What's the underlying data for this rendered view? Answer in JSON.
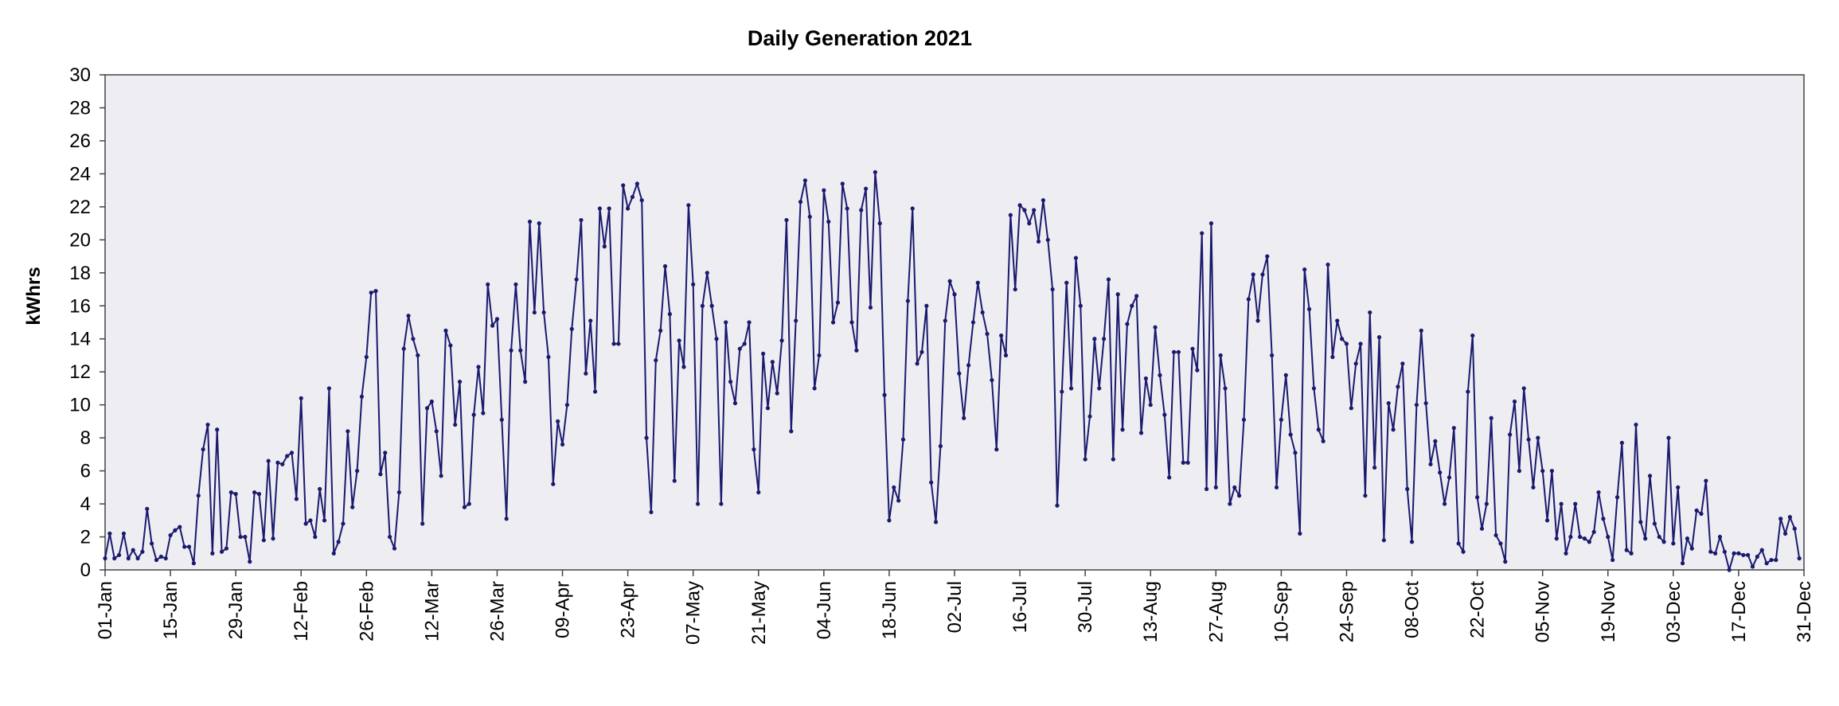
{
  "chart_data": {
    "type": "line",
    "title": "Daily Generation 2021",
    "xlabel": "",
    "ylabel": "kWhrs",
    "ylim": [
      0,
      30
    ],
    "yticks": [
      0,
      2,
      4,
      6,
      8,
      10,
      12,
      14,
      16,
      18,
      20,
      22,
      24,
      26,
      28,
      30
    ],
    "x_start": "01-Jan",
    "x_end": "31-Dec",
    "xticks": [
      {
        "day": 0,
        "label": "01-Jan"
      },
      {
        "day": 14,
        "label": "15-Jan"
      },
      {
        "day": 28,
        "label": "29-Jan"
      },
      {
        "day": 42,
        "label": "12-Feb"
      },
      {
        "day": 56,
        "label": "26-Feb"
      },
      {
        "day": 70,
        "label": "12-Mar"
      },
      {
        "day": 84,
        "label": "26-Mar"
      },
      {
        "day": 98,
        "label": "09-Apr"
      },
      {
        "day": 112,
        "label": "23-Apr"
      },
      {
        "day": 126,
        "label": "07-May"
      },
      {
        "day": 140,
        "label": "21-May"
      },
      {
        "day": 154,
        "label": "04-Jun"
      },
      {
        "day": 168,
        "label": "18-Jun"
      },
      {
        "day": 182,
        "label": "02-Jul"
      },
      {
        "day": 196,
        "label": "16-Jul"
      },
      {
        "day": 210,
        "label": "30-Jul"
      },
      {
        "day": 224,
        "label": "13-Aug"
      },
      {
        "day": 238,
        "label": "27-Aug"
      },
      {
        "day": 252,
        "label": "10-Sep"
      },
      {
        "day": 266,
        "label": "24-Sep"
      },
      {
        "day": 280,
        "label": "08-Oct"
      },
      {
        "day": 294,
        "label": "22-Oct"
      },
      {
        "day": 308,
        "label": "05-Nov"
      },
      {
        "day": 322,
        "label": "19-Nov"
      },
      {
        "day": 336,
        "label": "03-Dec"
      },
      {
        "day": 350,
        "label": "17-Dec"
      },
      {
        "day": 364,
        "label": "31-Dec"
      }
    ],
    "grid": false,
    "line_color": "#1a1a6e",
    "plot_background": "#ededf2",
    "series": [
      {
        "values": [
          0.7,
          2.2,
          0.7,
          0.9,
          2.2,
          0.7,
          1.2,
          0.7,
          1.1,
          3.7,
          1.6,
          0.6,
          0.8,
          0.7,
          2.1,
          2.4,
          2.6,
          1.4,
          1.4,
          0.4,
          4.5,
          7.3,
          8.8,
          1.0,
          8.5,
          1.1,
          1.3,
          4.7,
          4.6,
          2.0,
          2.0,
          0.5,
          4.7,
          4.6,
          1.8,
          6.6,
          1.9,
          6.5,
          6.4,
          6.9,
          7.1,
          4.3,
          10.4,
          2.8,
          3.0,
          2.0,
          4.9,
          3.0,
          11.0,
          1.0,
          1.7,
          2.8,
          8.4,
          3.8,
          6.0,
          10.5,
          12.9,
          16.8,
          16.9,
          5.8,
          7.1,
          2.0,
          1.3,
          4.7,
          13.4,
          15.4,
          14.0,
          13.0,
          2.8,
          9.8,
          10.2,
          8.4,
          5.7,
          14.5,
          13.6,
          8.8,
          11.4,
          3.8,
          4.0,
          9.4,
          12.3,
          9.5,
          17.3,
          14.8,
          15.2,
          9.1,
          3.1,
          13.3,
          17.3,
          13.3,
          11.4,
          21.1,
          15.6,
          21.0,
          15.6,
          12.9,
          5.2,
          9.0,
          7.6,
          10.0,
          14.6,
          17.6,
          21.2,
          11.9,
          15.1,
          10.8,
          21.9,
          19.6,
          21.9,
          13.7,
          13.7,
          23.3,
          21.9,
          22.6,
          23.4,
          22.4,
          8.0,
          3.5,
          12.7,
          14.5,
          18.4,
          15.5,
          5.4,
          13.9,
          12.3,
          22.1,
          17.3,
          4.0,
          16.0,
          18.0,
          16.0,
          14.0,
          4.0,
          15.0,
          11.4,
          10.1,
          13.4,
          13.7,
          15.0,
          7.3,
          4.7,
          13.1,
          9.8,
          12.6,
          10.7,
          13.9,
          21.2,
          8.4,
          15.1,
          22.3,
          23.6,
          21.4,
          11.0,
          13.0,
          23.0,
          21.1,
          15.0,
          16.2,
          23.4,
          21.9,
          15.0,
          13.3,
          21.8,
          23.1,
          15.9,
          24.1,
          21.0,
          10.6,
          3.0,
          5.0,
          4.2,
          7.9,
          16.3,
          21.9,
          12.5,
          13.2,
          16.0,
          5.3,
          2.9,
          7.5,
          15.1,
          17.5,
          16.7,
          11.9,
          9.2,
          12.4,
          15.0,
          17.4,
          15.6,
          14.3,
          11.5,
          7.3,
          14.2,
          13.0,
          21.5,
          17.0,
          22.1,
          21.8,
          21.0,
          21.8,
          19.9,
          22.4,
          20.0,
          17.0,
          3.9,
          10.8,
          17.4,
          11.0,
          18.9,
          16.0,
          6.7,
          9.3,
          14.0,
          11.0,
          14.0,
          17.6,
          6.7,
          16.7,
          8.5,
          14.9,
          16.0,
          16.6,
          8.3,
          11.6,
          10.0,
          14.7,
          11.8,
          9.4,
          5.6,
          13.2,
          13.2,
          6.5,
          6.5,
          13.4,
          12.1,
          20.4,
          4.9,
          21.0,
          5.0,
          13.0,
          11.0,
          4.0,
          5.0,
          4.5,
          9.1,
          16.4,
          17.9,
          15.1,
          17.9,
          19.0,
          13.0,
          5.0,
          9.1,
          11.8,
          8.2,
          7.1,
          2.2,
          18.2,
          15.8,
          11.0,
          8.5,
          7.8,
          18.5,
          12.9,
          15.1,
          14.0,
          13.7,
          9.8,
          12.5,
          13.7,
          4.5,
          15.6,
          6.2,
          14.1,
          1.8,
          10.1,
          8.5,
          11.1,
          12.5,
          4.9,
          1.7,
          10.0,
          14.5,
          10.1,
          6.4,
          7.8,
          5.9,
          4.0,
          5.6,
          8.6,
          1.6,
          1.1,
          10.8,
          14.2,
          4.4,
          2.5,
          4.0,
          9.2,
          2.1,
          1.6,
          0.5,
          8.2,
          10.2,
          6.0,
          11.0,
          7.9,
          5.0,
          8.0,
          6.0,
          3.0,
          6.0,
          1.9,
          4.0,
          1.0,
          2.0,
          4.0,
          2.0,
          1.9,
          1.7,
          2.3,
          4.7,
          3.1,
          2.0,
          0.6,
          4.4,
          7.7,
          1.2,
          1.0,
          8.8,
          2.9,
          1.9,
          5.7,
          2.8,
          2.0,
          1.7,
          8.0,
          1.6,
          5.0,
          0.4,
          1.9,
          1.3,
          3.6,
          3.4,
          5.4,
          1.1,
          1.0,
          2.0,
          1.1,
          0.0,
          1.0,
          1.0,
          0.9,
          0.9,
          0.2,
          0.8,
          1.2,
          0.4,
          0.6,
          0.6,
          3.1,
          2.2,
          3.2,
          2.5,
          0.7
        ]
      }
    ]
  }
}
